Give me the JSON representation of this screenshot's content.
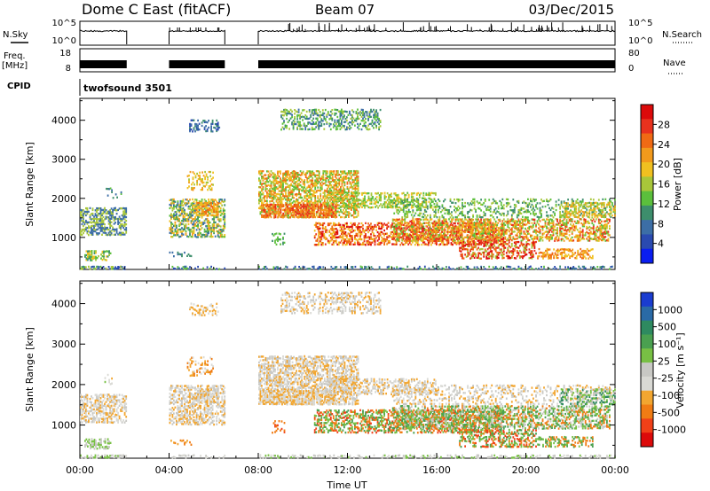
{
  "header": {
    "station": "Dome C East (fitACF)",
    "beam": "Beam 07",
    "date": "03/Dec/2015"
  },
  "side_labels": {
    "nsky": "N.Sky",
    "freq": "Freq.",
    "freq_unit": "[MHz]",
    "cpid": "CPID",
    "nsearch": "N.Search",
    "nave": "Nave",
    "nsky_ticks": [
      "10^5",
      "10^0"
    ],
    "nsearch_ticks": [
      "10^5",
      "10^0"
    ],
    "freq_ticks": [
      "18",
      "8"
    ],
    "nave_ticks": [
      "80",
      "0"
    ]
  },
  "cpid_text": "twofsound 3501",
  "colors": {
    "power_scale": [
      "#0a1ef0",
      "#2a4ab0",
      "#3c6ea6",
      "#3d8e6c",
      "#5bbf3c",
      "#a8c63a",
      "#f0c020",
      "#f29a1c",
      "#f06a14",
      "#e8321e",
      "#dc0a0a"
    ],
    "velocity_scale": [
      "#dc0a0a",
      "#f04018",
      "#f07c14",
      "#f2a630",
      "#d9d9d4",
      "#c8c8c4",
      "#78c044",
      "#4aa050",
      "#2e8a60",
      "#2a6aa6",
      "#1a3cd0"
    ]
  },
  "chart_data": [
    {
      "type": "heatmap",
      "name": "power",
      "xlabel": "",
      "ylabel": "Slant Range [km]",
      "x_ticks": [
        "00:00",
        "04:00",
        "08:00",
        "12:00",
        "16:00",
        "20:00",
        "00:00"
      ],
      "xlim_hours": [
        0,
        24
      ],
      "y_ticks": [
        1000,
        2000,
        3000,
        4000
      ],
      "ylim": [
        180,
        4560
      ],
      "colorbar_label": "Power [dB]",
      "colorbar_ticks": [
        4,
        8,
        12,
        16,
        20,
        24,
        28
      ],
      "colorbar_range": [
        0,
        32
      ],
      "data_intervals_hours": [
        [
          0,
          2.1
        ],
        [
          4.0,
          6.5
        ],
        [
          8.0,
          24
        ]
      ]
    },
    {
      "type": "heatmap",
      "name": "velocity",
      "xlabel": "Time UT",
      "ylabel": "Slant Range [km]",
      "x_ticks": [
        "00:00",
        "04:00",
        "08:00",
        "12:00",
        "16:00",
        "20:00",
        "00:00"
      ],
      "xlim_hours": [
        0,
        24
      ],
      "y_ticks": [
        1000,
        2000,
        3000,
        4000
      ],
      "ylim": [
        180,
        4560
      ],
      "colorbar_label": "Velocity [m s⁻¹]",
      "colorbar_ticks": [
        "1000",
        "500",
        "100",
        "25",
        "-25",
        "-100",
        "-500",
        "-1000"
      ],
      "data_intervals_hours": [
        [
          0,
          2.1
        ],
        [
          4.0,
          6.5
        ],
        [
          8.0,
          24
        ]
      ]
    }
  ]
}
